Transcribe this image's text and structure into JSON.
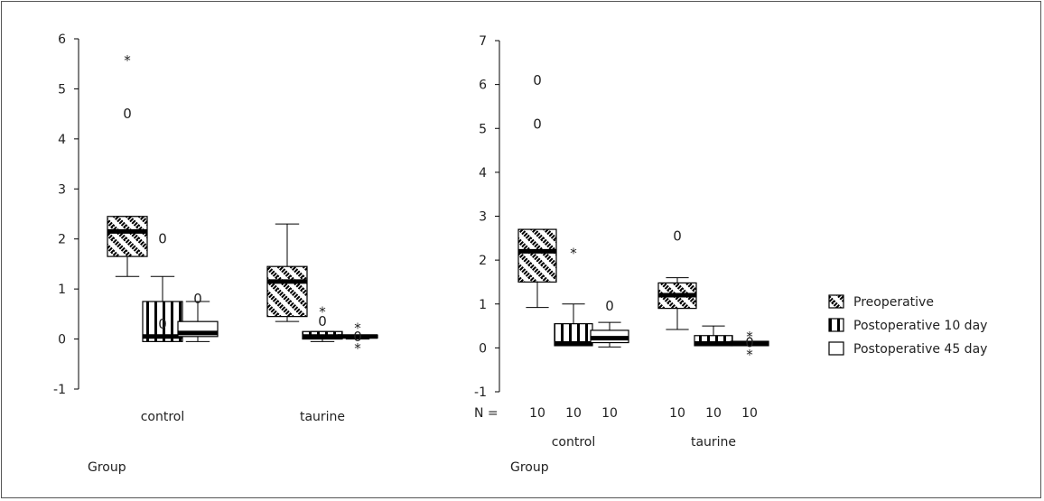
{
  "chart_data": [
    {
      "type": "box",
      "xlabel": "Group",
      "ylabel": "",
      "ylim": [
        -1,
        6
      ],
      "yticks": [
        -1,
        0,
        1,
        2,
        3,
        4,
        5,
        6
      ],
      "categories": [
        "control",
        "taurine"
      ],
      "n_label": "",
      "n_values": [],
      "groups": [
        {
          "category": "control",
          "boxes": [
            {
              "series": "Preoperative",
              "min": 1.25,
              "q1": 1.65,
              "median": 2.15,
              "q3": 2.45,
              "max": 2.45,
              "outliers": [
                {
                  "value": 4.5,
                  "marker": "0"
                }
              ],
              "extremes": [
                {
                  "value": 5.6,
                  "marker": "*"
                }
              ]
            },
            {
              "series": "Postoperative 10 day",
              "min": -0.05,
              "q1": -0.05,
              "median": 0.05,
              "q3": 0.75,
              "max": 1.25,
              "outliers": [
                {
                  "value": 2.0,
                  "marker": "0"
                },
                {
                  "value": 0.3,
                  "marker": "0"
                }
              ],
              "extremes": []
            },
            {
              "series": "Postoperative 45 day",
              "min": -0.05,
              "q1": 0.05,
              "median": 0.12,
              "q3": 0.35,
              "max": 0.75,
              "outliers": [
                {
                  "value": 0.8,
                  "marker": "0"
                }
              ],
              "extremes": []
            }
          ]
        },
        {
          "category": "taurine",
          "boxes": [
            {
              "series": "Preoperative",
              "min": 0.35,
              "q1": 0.45,
              "median": 1.15,
              "q3": 1.45,
              "max": 2.3,
              "outliers": [],
              "extremes": []
            },
            {
              "series": "Postoperative 10 day",
              "min": -0.05,
              "q1": 0.0,
              "median": 0.05,
              "q3": 0.15,
              "max": 0.15,
              "outliers": [
                {
                  "value": 0.35,
                  "marker": "0"
                }
              ],
              "extremes": [
                {
                  "value": 0.58,
                  "marker": "*"
                }
              ]
            },
            {
              "series": "Postoperative 45 day",
              "min": 0.0,
              "q1": 0.02,
              "median": 0.05,
              "q3": 0.08,
              "max": 0.08,
              "outliers": [
                {
                  "value": 0.05,
                  "marker": "0"
                }
              ],
              "extremes": [
                {
                  "value": 0.25,
                  "marker": "*"
                },
                {
                  "value": -0.15,
                  "marker": "*"
                }
              ]
            }
          ]
        }
      ]
    },
    {
      "type": "box",
      "xlabel": "Group",
      "ylabel": "",
      "ylim": [
        -1,
        7
      ],
      "yticks": [
        -1,
        0,
        1,
        2,
        3,
        4,
        5,
        6,
        7
      ],
      "categories": [
        "control",
        "taurine"
      ],
      "n_label": "N =",
      "n_values": [
        "10",
        "10",
        "10",
        "10",
        "10",
        "10"
      ],
      "groups": [
        {
          "category": "control",
          "boxes": [
            {
              "series": "Preoperative",
              "min": 0.92,
              "q1": 1.5,
              "median": 2.2,
              "q3": 2.7,
              "max": 2.7,
              "outliers": [
                {
                  "value": 6.1,
                  "marker": "0"
                },
                {
                  "value": 5.1,
                  "marker": "0"
                }
              ],
              "extremes": []
            },
            {
              "series": "Postoperative 10 day",
              "min": 0.05,
              "q1": 0.05,
              "median": 0.1,
              "q3": 0.55,
              "max": 1.0,
              "outliers": [],
              "extremes": [
                {
                  "value": 2.2,
                  "marker": "*"
                }
              ]
            },
            {
              "series": "Postoperative 45 day",
              "min": 0.02,
              "q1": 0.12,
              "median": 0.22,
              "q3": 0.4,
              "max": 0.58,
              "outliers": [
                {
                  "value": 0.95,
                  "marker": "0"
                }
              ],
              "extremes": []
            }
          ]
        },
        {
          "category": "taurine",
          "boxes": [
            {
              "series": "Preoperative",
              "min": 0.42,
              "q1": 0.9,
              "median": 1.2,
              "q3": 1.48,
              "max": 1.6,
              "outliers": [
                {
                  "value": 2.55,
                  "marker": "0"
                }
              ],
              "extremes": []
            },
            {
              "series": "Postoperative 10 day",
              "min": 0.05,
              "q1": 0.05,
              "median": 0.1,
              "q3": 0.28,
              "max": 0.5,
              "outliers": [],
              "extremes": []
            },
            {
              "series": "Postoperative 45 day",
              "min": 0.05,
              "q1": 0.05,
              "median": 0.1,
              "q3": 0.15,
              "max": 0.15,
              "outliers": [
                {
                  "value": 0.12,
                  "marker": "0"
                }
              ],
              "extremes": [
                {
                  "value": 0.3,
                  "marker": "*"
                },
                {
                  "value": -0.12,
                  "marker": "*"
                }
              ]
            }
          ]
        }
      ]
    }
  ],
  "legend": {
    "placement": "right",
    "items": [
      {
        "label": "Preoperative",
        "pattern": "diagonal"
      },
      {
        "label": "Postoperative 10 day",
        "pattern": "vertical"
      },
      {
        "label": "Postoperative 45 day",
        "pattern": "blank"
      }
    ]
  },
  "colors": {
    "ink": "#000000",
    "background": "#ffffff"
  }
}
